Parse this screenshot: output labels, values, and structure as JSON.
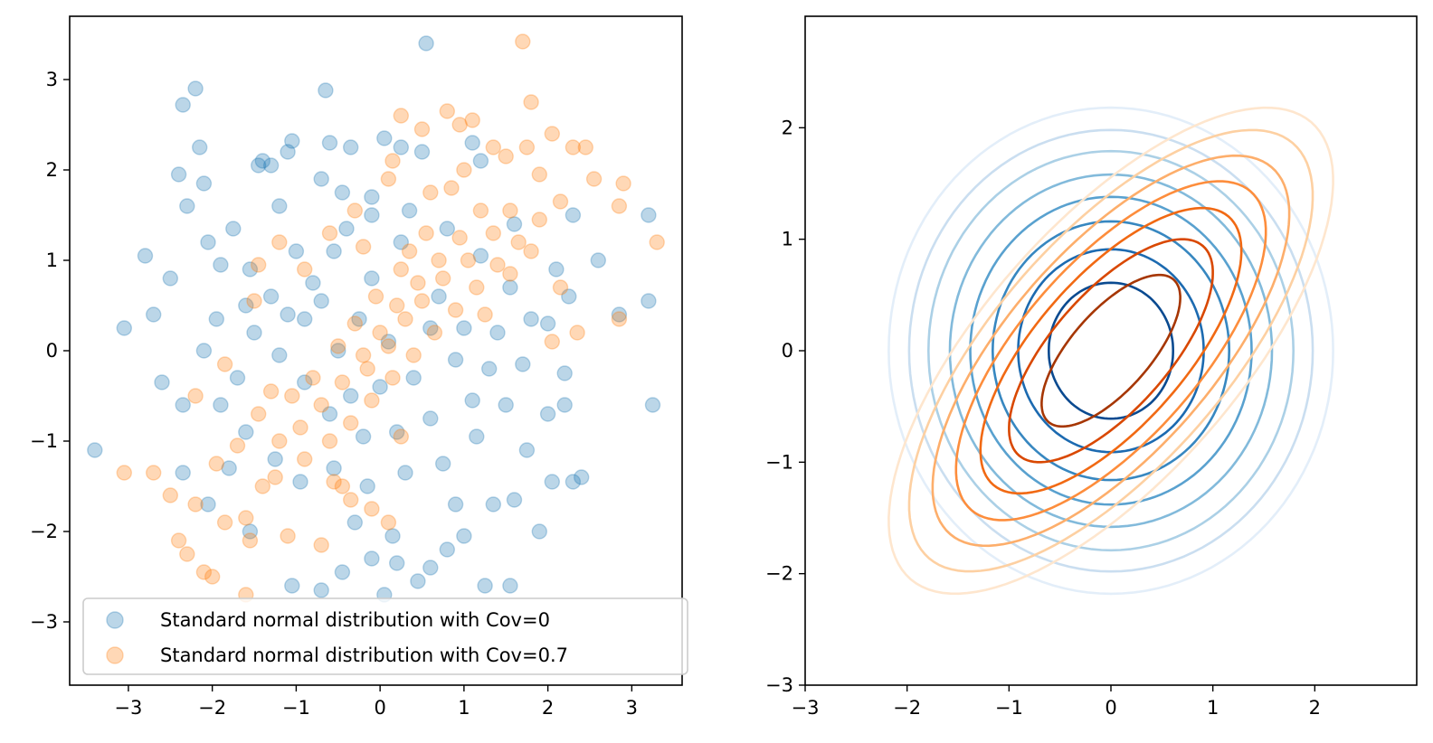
{
  "chart_data": [
    {
      "type": "scatter",
      "title": "",
      "xlabel": "",
      "ylabel": "",
      "xlim": [
        -3.7,
        3.6
      ],
      "ylim": [
        -3.7,
        3.7
      ],
      "xticks": [
        -3,
        -2,
        -1,
        0,
        1,
        2,
        3
      ],
      "yticks": [
        -3,
        -2,
        -1,
        0,
        1,
        2,
        3
      ],
      "legend_position": "lower-left",
      "series": [
        {
          "name": "Standard normal distribution with Cov=0",
          "color": "#1f77b4",
          "alpha": 0.3,
          "points": [
            [
              -3.4,
              -1.1
            ],
            [
              -3.05,
              0.25
            ],
            [
              -2.8,
              1.05
            ],
            [
              -2.7,
              0.4
            ],
            [
              -2.5,
              0.8
            ],
            [
              -2.4,
              1.95
            ],
            [
              -2.35,
              2.72
            ],
            [
              -2.2,
              2.9
            ],
            [
              -2.15,
              2.25
            ],
            [
              -2.1,
              1.85
            ],
            [
              -2.05,
              1.2
            ],
            [
              -1.9,
              0.95
            ],
            [
              -1.75,
              1.35
            ],
            [
              -1.6,
              0.5
            ],
            [
              -1.45,
              2.05
            ],
            [
              -1.4,
              2.1
            ],
            [
              -1.3,
              2.05
            ],
            [
              -1.1,
              2.2
            ],
            [
              -1.05,
              2.32
            ],
            [
              -0.7,
              1.9
            ],
            [
              -0.6,
              2.3
            ],
            [
              -0.65,
              2.88
            ],
            [
              -0.45,
              1.75
            ],
            [
              -0.35,
              2.25
            ],
            [
              -0.1,
              1.7
            ],
            [
              0.05,
              2.35
            ],
            [
              0.25,
              2.25
            ],
            [
              0.5,
              2.2
            ],
            [
              0.55,
              3.4
            ],
            [
              1.1,
              2.3
            ],
            [
              1.2,
              2.1
            ],
            [
              2.3,
              1.5
            ],
            [
              2.6,
              1.0
            ],
            [
              3.2,
              1.5
            ],
            [
              3.2,
              0.55
            ],
            [
              3.25,
              -0.6
            ],
            [
              2.85,
              0.4
            ],
            [
              2.25,
              0.6
            ],
            [
              2.0,
              0.3
            ],
            [
              2.2,
              -0.25
            ],
            [
              2.2,
              -0.6
            ],
            [
              2.0,
              -0.7
            ],
            [
              2.3,
              -1.45
            ],
            [
              2.4,
              -1.4
            ],
            [
              2.05,
              -1.45
            ],
            [
              1.9,
              -2.0
            ],
            [
              1.6,
              -1.65
            ],
            [
              1.55,
              -2.6
            ],
            [
              1.35,
              -1.7
            ],
            [
              1.25,
              -2.6
            ],
            [
              1.0,
              -2.05
            ],
            [
              0.8,
              -2.2
            ],
            [
              0.6,
              -2.4
            ],
            [
              0.45,
              -2.55
            ],
            [
              0.2,
              -2.35
            ],
            [
              0.05,
              -2.7
            ],
            [
              -0.1,
              -2.3
            ],
            [
              -0.45,
              -2.45
            ],
            [
              -0.7,
              -2.65
            ],
            [
              -1.05,
              -2.6
            ],
            [
              -1.55,
              -2.0
            ],
            [
              -2.05,
              -1.7
            ],
            [
              -2.35,
              -1.35
            ],
            [
              -2.6,
              -0.35
            ],
            [
              -2.35,
              -0.6
            ],
            [
              -2.1,
              0.0
            ],
            [
              -1.55,
              0.9
            ],
            [
              -1.3,
              0.6
            ],
            [
              -1.0,
              1.1
            ],
            [
              -0.8,
              0.75
            ],
            [
              -0.4,
              1.35
            ],
            [
              -0.1,
              0.8
            ],
            [
              0.25,
              1.2
            ],
            [
              0.7,
              0.6
            ],
            [
              1.0,
              0.25
            ],
            [
              1.3,
              -0.2
            ],
            [
              1.1,
              -0.55
            ],
            [
              0.6,
              -0.75
            ],
            [
              0.2,
              -0.9
            ],
            [
              -0.2,
              -0.95
            ],
            [
              -0.6,
              -0.7
            ],
            [
              -0.9,
              -0.35
            ],
            [
              -1.2,
              -0.05
            ],
            [
              -1.5,
              0.2
            ],
            [
              -1.7,
              -0.3
            ],
            [
              -1.9,
              -0.6
            ],
            [
              -1.6,
              -0.9
            ],
            [
              -1.25,
              -1.2
            ],
            [
              -0.95,
              -1.45
            ],
            [
              -0.55,
              -1.3
            ],
            [
              -0.15,
              -1.5
            ],
            [
              0.3,
              -1.35
            ],
            [
              0.75,
              -1.25
            ],
            [
              1.15,
              -0.95
            ],
            [
              1.5,
              -0.6
            ],
            [
              1.7,
              -0.15
            ],
            [
              1.8,
              0.35
            ],
            [
              1.55,
              0.7
            ],
            [
              1.2,
              1.05
            ],
            [
              0.8,
              1.35
            ],
            [
              0.35,
              1.55
            ],
            [
              -0.1,
              1.5
            ],
            [
              -0.55,
              1.1
            ],
            [
              -0.9,
              0.35
            ],
            [
              -0.5,
              0.0
            ],
            [
              -0.25,
              0.35
            ],
            [
              0.1,
              0.1
            ],
            [
              0.4,
              -0.3
            ],
            [
              0.0,
              -0.4
            ],
            [
              -0.35,
              -0.5
            ],
            [
              0.6,
              0.25
            ],
            [
              0.9,
              -0.1
            ],
            [
              -0.7,
              0.55
            ],
            [
              -1.1,
              0.4
            ],
            [
              1.4,
              0.2
            ],
            [
              -2.3,
              1.6
            ],
            [
              -1.8,
              -1.3
            ],
            [
              -0.3,
              -1.9
            ],
            [
              0.9,
              -1.7
            ],
            [
              1.75,
              -1.1
            ],
            [
              2.1,
              0.9
            ],
            [
              1.6,
              1.4
            ],
            [
              -1.2,
              1.6
            ],
            [
              -1.95,
              0.35
            ],
            [
              0.15,
              -2.05
            ]
          ]
        },
        {
          "name": "Standard normal distribution with Cov=0.7",
          "color": "#ff7f0e",
          "alpha": 0.3,
          "points": [
            [
              -3.05,
              -1.35
            ],
            [
              -2.7,
              -1.35
            ],
            [
              -2.5,
              -1.6
            ],
            [
              -2.4,
              -2.1
            ],
            [
              -2.3,
              -2.25
            ],
            [
              -2.2,
              -1.7
            ],
            [
              -2.1,
              -2.45
            ],
            [
              -2.0,
              -2.5
            ],
            [
              -1.85,
              -1.9
            ],
            [
              -1.6,
              -2.7
            ],
            [
              -1.55,
              -2.1
            ],
            [
              -1.4,
              -1.5
            ],
            [
              -1.1,
              -2.05
            ],
            [
              -0.7,
              -2.15
            ],
            [
              -0.45,
              -1.5
            ],
            [
              -2.2,
              -0.5
            ],
            [
              -1.85,
              -0.15
            ],
            [
              -1.5,
              0.55
            ],
            [
              -1.45,
              0.95
            ],
            [
              -1.2,
              1.2
            ],
            [
              -0.9,
              0.9
            ],
            [
              -0.6,
              1.3
            ],
            [
              -0.3,
              1.55
            ],
            [
              0.1,
              1.9
            ],
            [
              0.15,
              2.1
            ],
            [
              0.25,
              2.6
            ],
            [
              0.5,
              2.45
            ],
            [
              0.8,
              2.65
            ],
            [
              0.95,
              2.5
            ],
            [
              1.1,
              2.55
            ],
            [
              1.35,
              2.25
            ],
            [
              1.5,
              2.15
            ],
            [
              1.7,
              3.42
            ],
            [
              1.8,
              2.75
            ],
            [
              1.75,
              2.25
            ],
            [
              1.9,
              1.95
            ],
            [
              2.05,
              2.4
            ],
            [
              2.3,
              2.25
            ],
            [
              2.45,
              2.25
            ],
            [
              2.55,
              1.9
            ],
            [
              2.85,
              1.6
            ],
            [
              2.9,
              1.85
            ],
            [
              3.3,
              1.2
            ],
            [
              2.85,
              0.35
            ],
            [
              2.35,
              0.2
            ],
            [
              2.05,
              0.1
            ],
            [
              2.15,
              0.7
            ],
            [
              1.8,
              1.1
            ],
            [
              1.55,
              0.85
            ],
            [
              1.35,
              1.3
            ],
            [
              1.2,
              1.55
            ],
            [
              0.95,
              1.25
            ],
            [
              0.7,
              1.0
            ],
            [
              0.45,
              0.75
            ],
            [
              0.2,
              0.5
            ],
            [
              0.0,
              0.2
            ],
            [
              -0.2,
              -0.05
            ],
            [
              -0.45,
              -0.35
            ],
            [
              -0.7,
              -0.6
            ],
            [
              -0.95,
              -0.85
            ],
            [
              -1.2,
              -1.0
            ],
            [
              -1.45,
              -0.7
            ],
            [
              -1.7,
              -1.05
            ],
            [
              -1.95,
              -1.25
            ],
            [
              -1.25,
              -1.4
            ],
            [
              -0.9,
              -1.2
            ],
            [
              -0.6,
              -1.0
            ],
            [
              -0.35,
              -0.8
            ],
            [
              -0.1,
              -0.55
            ],
            [
              0.15,
              -0.3
            ],
            [
              0.4,
              -0.05
            ],
            [
              0.65,
              0.2
            ],
            [
              0.9,
              0.45
            ],
            [
              1.15,
              0.7
            ],
            [
              1.4,
              0.95
            ],
            [
              1.65,
              1.2
            ],
            [
              1.9,
              1.45
            ],
            [
              2.15,
              1.65
            ],
            [
              0.3,
              0.35
            ],
            [
              0.5,
              0.55
            ],
            [
              -0.05,
              0.6
            ],
            [
              0.25,
              0.9
            ],
            [
              -0.3,
              0.3
            ],
            [
              -0.5,
              0.05
            ],
            [
              0.75,
              0.8
            ],
            [
              1.05,
              1.0
            ],
            [
              -0.8,
              -0.3
            ],
            [
              -1.05,
              -0.5
            ],
            [
              0.55,
              1.3
            ],
            [
              0.35,
              1.1
            ],
            [
              -0.15,
              -0.2
            ],
            [
              0.1,
              0.05
            ],
            [
              1.25,
              0.4
            ],
            [
              1.55,
              1.55
            ],
            [
              -1.3,
              -0.45
            ],
            [
              -0.55,
              -1.45
            ],
            [
              0.25,
              -0.95
            ],
            [
              -0.2,
              1.15
            ],
            [
              0.85,
              1.8
            ],
            [
              1.0,
              2.0
            ],
            [
              0.6,
              1.75
            ],
            [
              -0.1,
              -1.75
            ],
            [
              0.1,
              -1.9
            ],
            [
              -0.35,
              -1.65
            ],
            [
              -1.6,
              -1.85
            ]
          ]
        }
      ]
    },
    {
      "type": "contour",
      "title": "",
      "xlabel": "",
      "ylabel": "",
      "xlim": [
        -3,
        3
      ],
      "ylim": [
        -3,
        3
      ],
      "xticks": [
        -3,
        -2,
        -1,
        0,
        1,
        2
      ],
      "yticks": [
        -3,
        -2,
        -1,
        0,
        1,
        2
      ],
      "series": [
        {
          "name": "Cov=0",
          "colormap": "Blues",
          "covariance": [
            [
              1,
              0
            ],
            [
              0,
              1
            ]
          ],
          "levels": [
            {
              "radius": 2.18,
              "color": "#e3eef9"
            },
            {
              "radius": 1.98,
              "color": "#cadef0"
            },
            {
              "radius": 1.79,
              "color": "#abd0e6"
            },
            {
              "radius": 1.58,
              "color": "#82badb"
            },
            {
              "radius": 1.38,
              "color": "#59a1cf"
            },
            {
              "radius": 1.16,
              "color": "#3787c0"
            },
            {
              "radius": 0.91,
              "color": "#1c6ab0"
            },
            {
              "radius": 0.61,
              "color": "#0a4a90"
            }
          ]
        },
        {
          "name": "Cov=0.7",
          "colormap": "Oranges",
          "covariance": [
            [
              1,
              0.7
            ],
            [
              0.7,
              1
            ]
          ],
          "levels": [
            {
              "radius": 2.18,
              "color": "#fee6ce"
            },
            {
              "radius": 1.98,
              "color": "#fdd0a2"
            },
            {
              "radius": 1.75,
              "color": "#fdae6b"
            },
            {
              "radius": 1.52,
              "color": "#fd8d3c"
            },
            {
              "radius": 1.28,
              "color": "#f16913"
            },
            {
              "radius": 1.0,
              "color": "#d94801"
            },
            {
              "radius": 0.68,
              "color": "#a63603"
            }
          ]
        }
      ]
    }
  ]
}
